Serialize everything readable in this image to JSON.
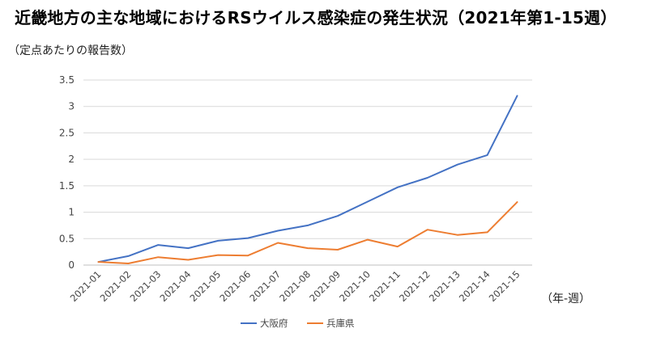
{
  "chart_data": {
    "type": "line",
    "title": "近畿地方の主な地域におけるRSウイルス感染症の発生状況（2021年第1-15週）",
    "ylabel": "（定点あたりの報告数）",
    "xlabel": "（年-週）",
    "categories": [
      "2021-01",
      "2021-02",
      "2021-03",
      "2021-04",
      "2021-05",
      "2021-06",
      "2021-07",
      "2021-08",
      "2021-09",
      "2021-10",
      "2021-11",
      "2021-12",
      "2021-13",
      "2021-14",
      "2021-15"
    ],
    "ylim": [
      0,
      3.5
    ],
    "yticks": [
      "0",
      "0.5",
      "1",
      "1.5",
      "2",
      "2.5",
      "3",
      "3.5"
    ],
    "grid": "horizontal",
    "legend_position": "bottom",
    "series": [
      {
        "name": "大阪府",
        "color": "#4472C4",
        "values": [
          0.06,
          0.17,
          0.38,
          0.32,
          0.46,
          0.51,
          0.65,
          0.75,
          0.93,
          1.2,
          1.47,
          1.65,
          1.9,
          2.08,
          3.2
        ]
      },
      {
        "name": "兵庫県",
        "color": "#ED7D31",
        "values": [
          0.06,
          0.03,
          0.15,
          0.1,
          0.19,
          0.18,
          0.42,
          0.32,
          0.29,
          0.48,
          0.35,
          0.67,
          0.57,
          0.62,
          1.19
        ]
      }
    ]
  }
}
